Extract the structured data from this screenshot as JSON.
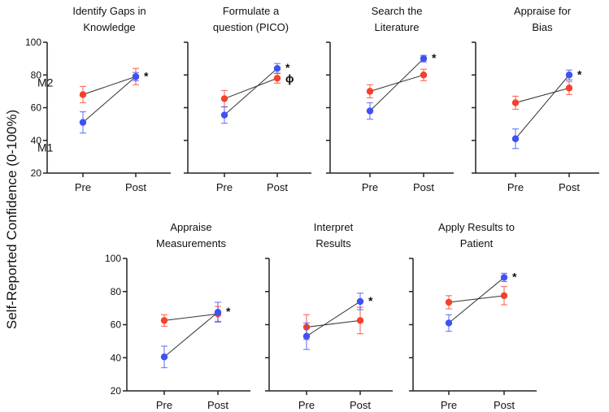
{
  "chart_data": {
    "type": "line",
    "ylabel": "Self-Reported Confidence (0-100%)",
    "ylim": [
      20,
      100
    ],
    "yticks": [
      20,
      40,
      60,
      80,
      100
    ],
    "categories": [
      "Pre",
      "Post"
    ],
    "series_labels": {
      "M1": "M1",
      "M2": "M2"
    },
    "colors": {
      "M1": "#3f51f5",
      "M2": "#f5412a",
      "line": "#333333",
      "axis": "#222222"
    },
    "panels": [
      {
        "title": [
          "Identify Gaps in",
          "Knowledge"
        ],
        "M1": {
          "values": [
            51,
            79
          ],
          "err": [
            6.5,
            2.5
          ]
        },
        "M2": {
          "values": [
            68,
            79
          ],
          "err": [
            5,
            5
          ]
        },
        "sig": [
          {
            "series": "M1",
            "mark": "*"
          }
        ]
      },
      {
        "title": [
          "Formulate a",
          "question (PICO)"
        ],
        "M1": {
          "values": [
            55.5,
            84
          ],
          "err": [
            5,
            3
          ]
        },
        "M2": {
          "values": [
            65.5,
            78
          ],
          "err": [
            5,
            3
          ]
        },
        "sig": [
          {
            "series": "M1",
            "mark": "*"
          },
          {
            "series": "M2",
            "mark": "ɸ"
          }
        ]
      },
      {
        "title": [
          "Search the",
          "Literature"
        ],
        "M1": {
          "values": [
            58,
            90
          ],
          "err": [
            5,
            2
          ]
        },
        "M2": {
          "values": [
            70,
            80
          ],
          "err": [
            4,
            3.5
          ]
        },
        "sig": [
          {
            "series": "M1",
            "mark": "*"
          }
        ]
      },
      {
        "title": [
          "Appraise for",
          "Bias"
        ],
        "M1": {
          "values": [
            41,
            80
          ],
          "err": [
            6,
            3
          ]
        },
        "M2": {
          "values": [
            63,
            72
          ],
          "err": [
            4,
            4
          ]
        },
        "sig": [
          {
            "series": "M1",
            "mark": "*"
          }
        ]
      },
      {
        "title": [
          "Appraise",
          "Measurements"
        ],
        "M1": {
          "values": [
            40.5,
            67.5
          ],
          "err": [
            6.5,
            6
          ]
        },
        "M2": {
          "values": [
            62.5,
            66.5
          ],
          "err": [
            3.5,
            4.5
          ]
        },
        "sig": [
          {
            "series": "M1",
            "mark": "*"
          }
        ]
      },
      {
        "title": [
          "Interpret",
          "Results"
        ],
        "M1": {
          "values": [
            53,
            74
          ],
          "err": [
            8,
            5
          ]
        },
        "M2": {
          "values": [
            58.5,
            62.5
          ],
          "err": [
            7.5,
            8
          ]
        },
        "sig": [
          {
            "series": "M1",
            "mark": "*"
          }
        ]
      },
      {
        "title": [
          "Apply Results to",
          "Patient"
        ],
        "M1": {
          "values": [
            61,
            88.5
          ],
          "err": [
            5,
            2.5
          ]
        },
        "M2": {
          "values": [
            73.5,
            77.5
          ],
          "err": [
            4,
            5.5
          ]
        },
        "sig": [
          {
            "series": "M1",
            "mark": "*"
          }
        ]
      }
    ]
  }
}
